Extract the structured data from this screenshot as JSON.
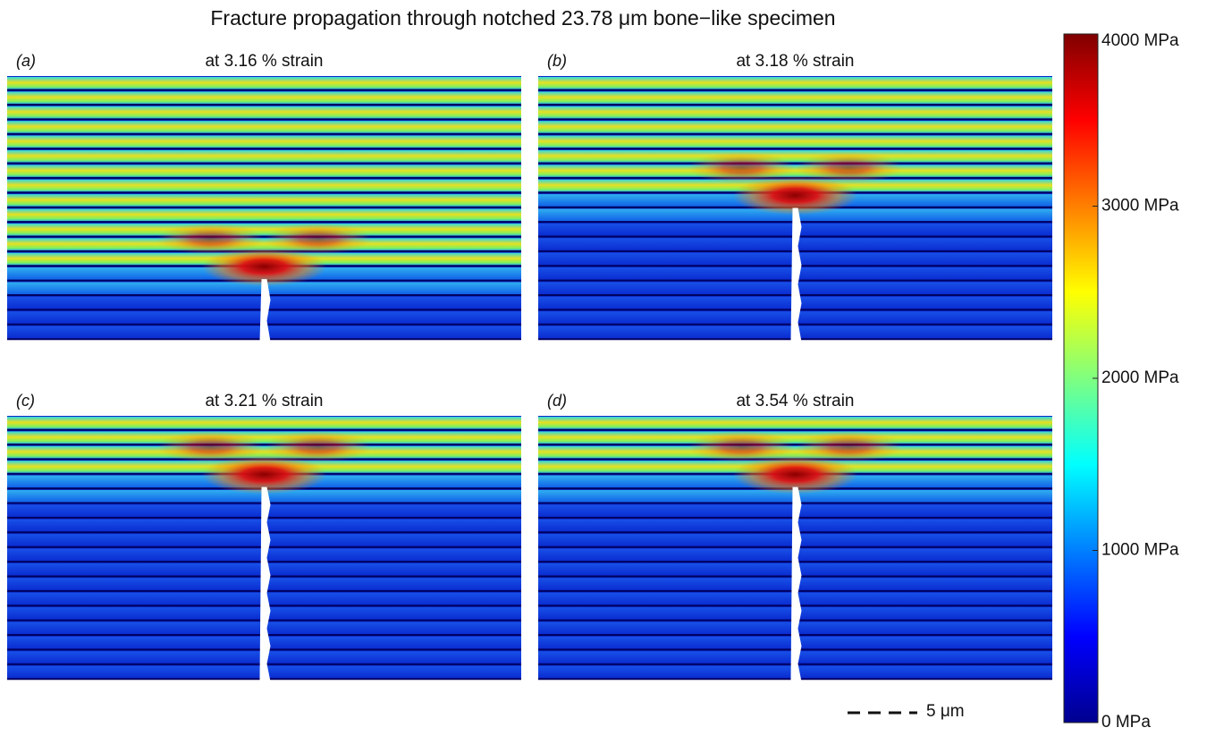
{
  "title": "Fracture propagation through notched 23.78 μm bone−like specimen",
  "panels": [
    {
      "label": "(a)",
      "subtitle": "at 3.16 % strain"
    },
    {
      "label": "(b)",
      "subtitle": "at 3.18 % strain"
    },
    {
      "label": "(c)",
      "subtitle": "at 3.21 % strain"
    },
    {
      "label": "(d)",
      "subtitle": "at 3.54 % strain"
    }
  ],
  "colorbar": {
    "lim": [
      0,
      4000
    ],
    "ticks": [
      {
        "value": 4000,
        "label": "4000 MPa"
      },
      {
        "value": 3000,
        "label": "3000 MPa"
      },
      {
        "value": 2000,
        "label": "2000 MPa"
      },
      {
        "value": 1000,
        "label": "1000 MPa"
      },
      {
        "value": 0,
        "label": "0 MPa"
      }
    ]
  },
  "scale_bar": "5 μm"
}
